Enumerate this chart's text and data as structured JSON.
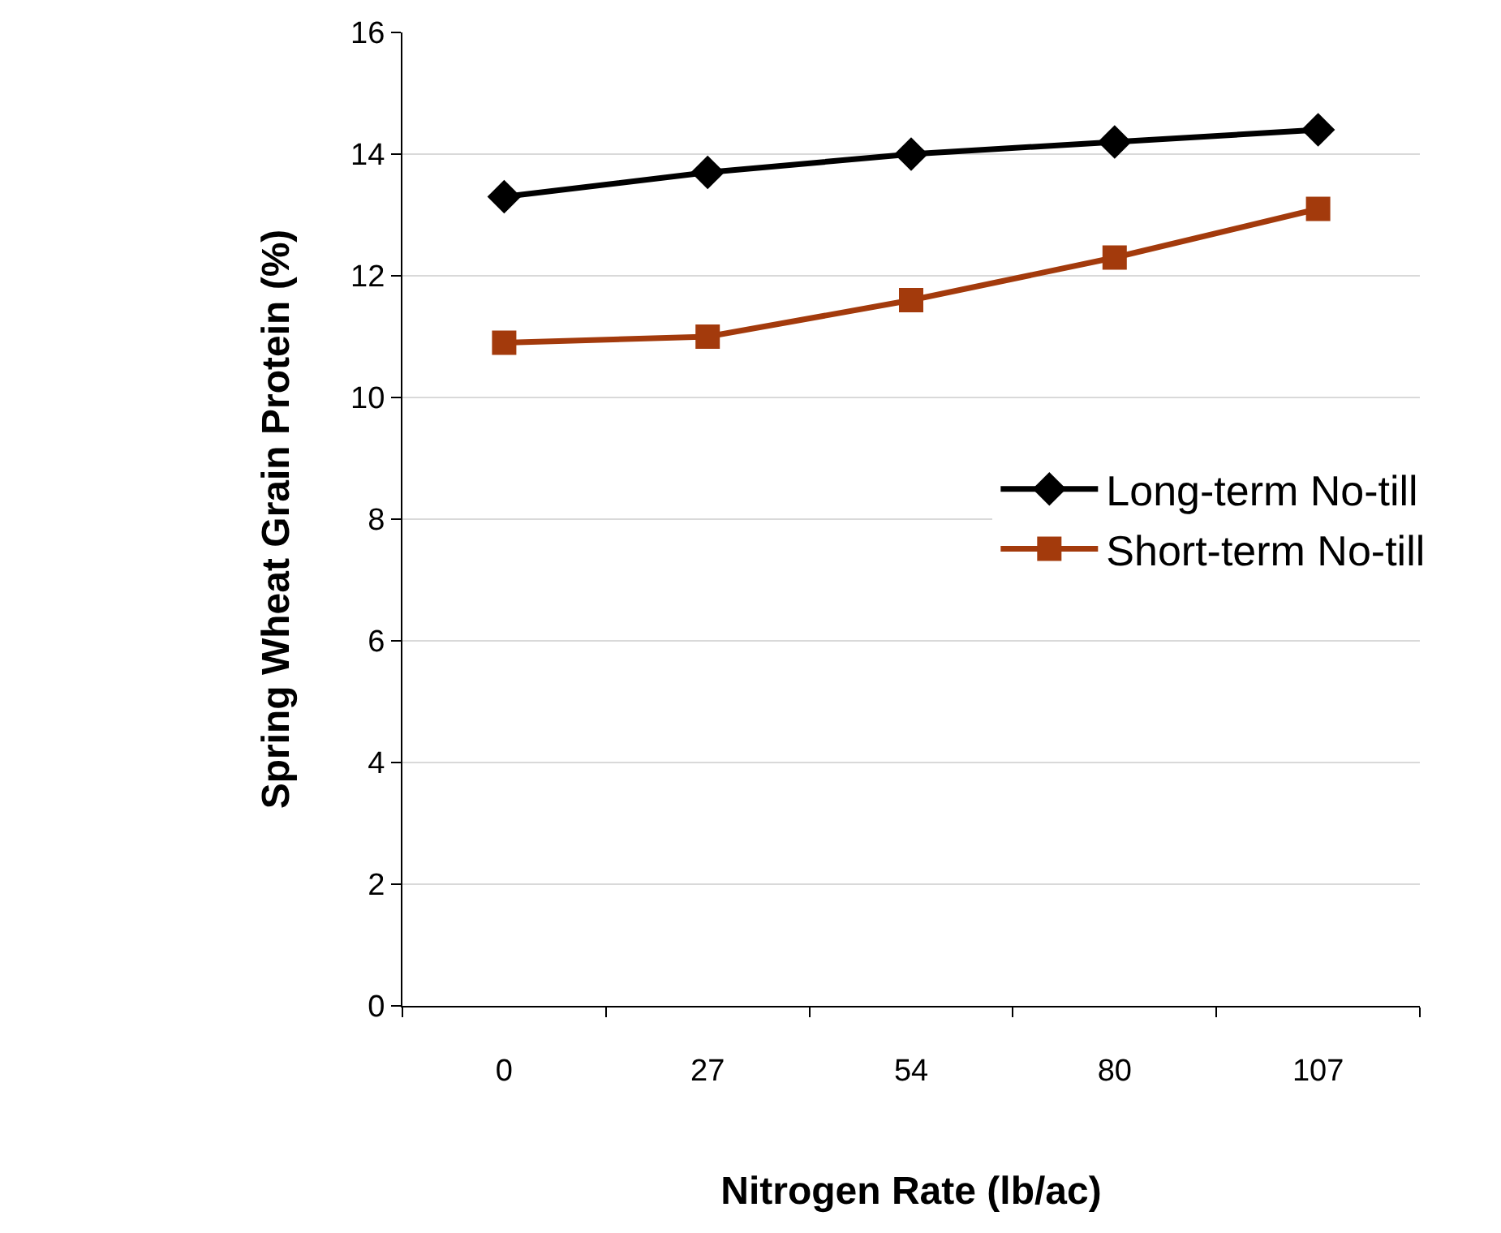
{
  "chart_data": {
    "type": "line",
    "xlabel": "Nitrogen Rate (lb/ac)",
    "ylabel": "Spring Wheat Grain Protein (%)",
    "categories": [
      "0",
      "27",
      "54",
      "80",
      "107"
    ],
    "series": [
      {
        "name": "Long-term No-till",
        "color": "#000000",
        "marker": "diamond",
        "values": [
          13.3,
          13.7,
          14.0,
          14.2,
          14.4
        ]
      },
      {
        "name": "Short-term No-till",
        "color": "#a33a0c",
        "marker": "square",
        "values": [
          10.9,
          11.0,
          11.6,
          12.3,
          13.1
        ]
      }
    ],
    "ylim": [
      0,
      16
    ],
    "yticks": [
      0,
      2,
      4,
      6,
      8,
      10,
      12,
      14,
      16
    ],
    "grid": "y",
    "legend": "right",
    "line_style": "solid"
  }
}
